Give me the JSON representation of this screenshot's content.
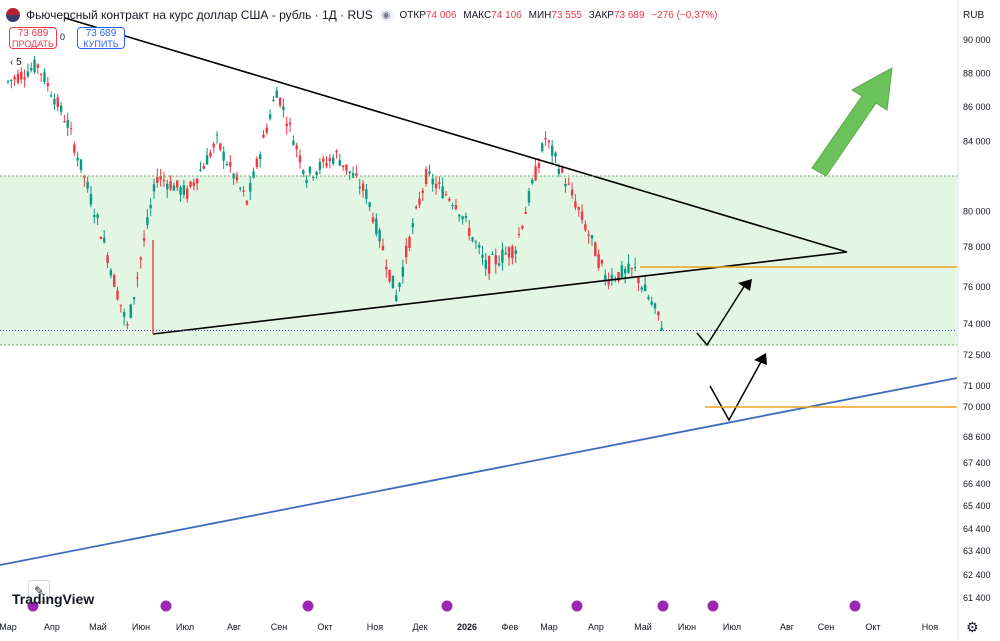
{
  "header": {
    "title": "Фьючерсный контракт на курс доллар США - рубль · 1Д · RUS",
    "open_label": "ОТКР",
    "open_value": "74 006",
    "high_label": "МАКС",
    "high_value": "74 106",
    "low_label": "МИН",
    "low_value": "73 555",
    "close_label": "ЗАКР",
    "close_value": "73 689",
    "change": "−276 (−0,37%)",
    "currency": "RUB"
  },
  "trade_buttons": {
    "sell_price": "73 689",
    "sell_label": "ПРОДАТЬ",
    "buy_price": "73 689",
    "buy_label": "КУПИТЬ",
    "spread": "0"
  },
  "interval_indicator": "5",
  "branding": {
    "logo_text": "TradingView"
  },
  "icons": [
    "us-flag-icon",
    "eye-icon",
    "pencil-icon",
    "settings-icon",
    "event-icon"
  ],
  "colors": {
    "up": "#089981",
    "down": "#f23645",
    "zone_fill": "#e3f5e3",
    "level_line": "#f0a020",
    "trend_line": "#3f6bbf",
    "triangle_line": "#000000",
    "arrow_fill": "#6cc25a",
    "last_price_tag": "#4b3bcf"
  },
  "chart_data": {
    "type": "candlestick",
    "y_axis": {
      "ylim": [
        61000,
        91000
      ],
      "tick_labels": [
        "90 000",
        "88 000",
        "86 000",
        "84 000",
        "80 000",
        "78 000",
        "76 000",
        "74 000",
        "72 500",
        "71 000",
        "70 000",
        "68 600",
        "67 400",
        "66 400",
        "65 400",
        "64 400",
        "63 400",
        "62 400",
        "61 400"
      ],
      "tick_values": [
        90000,
        88000,
        86000,
        84000,
        80000,
        78000,
        76000,
        74000,
        72500,
        71000,
        70000,
        68600,
        67400,
        66400,
        65400,
        64400,
        63400,
        62400,
        61400
      ]
    },
    "x_axis": {
      "labels": [
        "Мар",
        "Апр",
        "Май",
        "Июн",
        "Июл",
        "Авг",
        "Сен",
        "Окт",
        "Ноя",
        "Дек",
        "2026",
        "Фев",
        "Мар",
        "Апр",
        "Май",
        "Июн",
        "Июл",
        "Авг",
        "Сен",
        "Окт",
        "Ноя"
      ]
    },
    "horizontal_levels": [
      {
        "value": 82000,
        "label": "82 000"
      },
      {
        "value": 77000,
        "label": "77 000"
      },
      {
        "value": 73000,
        "label": "73 000"
      },
      {
        "value": 70000,
        "label": "70 000"
      }
    ],
    "last_price": {
      "value": 73689,
      "label": "73 689"
    },
    "shaded_zone": {
      "from": 73000,
      "to": 82000
    },
    "price_path": [
      [
        "Мар",
        87500
      ],
      [
        "Апр",
        88500
      ],
      [
        "Май",
        85000
      ],
      [
        "Июн",
        79500
      ],
      [
        "Июн",
        73800
      ],
      [
        "Июл",
        82000
      ],
      [
        "Авг",
        81000
      ],
      [
        "Авг",
        84000
      ],
      [
        "Сен",
        80500
      ],
      [
        "Сен",
        87000
      ],
      [
        "Окт",
        82000
      ],
      [
        "Окт",
        83200
      ],
      [
        "Ноя",
        81000
      ],
      [
        "Дек",
        75500
      ],
      [
        "Дек",
        82000
      ],
      [
        "2026",
        80500
      ],
      [
        "Фев",
        77000
      ],
      [
        "Мар",
        78000
      ],
      [
        "Мар",
        84200
      ],
      [
        "Апр",
        80500
      ],
      [
        "Апр",
        76500
      ],
      [
        "Май",
        76800
      ],
      [
        "Май",
        73689
      ]
    ],
    "drawings": [
      {
        "type": "triangle",
        "points": [
          [
            "Апр",
            91000
          ],
          [
            "Сен",
            87500
          ],
          [
            "Апр",
            78500
          ],
          [
            "Июн",
            73800
          ]
        ]
      },
      {
        "type": "trend_line",
        "from": [
          "Мар",
          62800
        ],
        "to": [
          "Ноя",
          71200
        ]
      },
      {
        "type": "zigzag_arrow",
        "points": [
          [
            "Июн",
            73000
          ],
          [
            "Июл",
            75500
          ]
        ]
      },
      {
        "type": "zigzag_arrow",
        "points": [
          [
            "Июл",
            71200
          ],
          [
            "Июл",
            69100
          ],
          [
            "Июл",
            72400
          ]
        ]
      },
      {
        "type": "up_arrow"
      }
    ]
  }
}
